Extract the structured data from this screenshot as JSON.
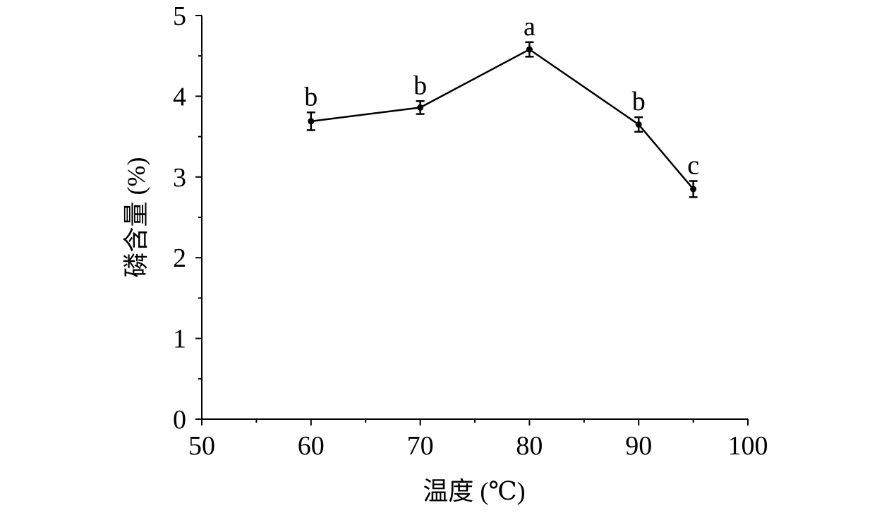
{
  "chart_data": {
    "type": "line",
    "title": "",
    "xlabel": "温度 (℃)",
    "ylabel": "磷含量 (%)",
    "xlim": [
      50,
      100
    ],
    "ylim": [
      0,
      5
    ],
    "x_ticks": [
      "50",
      "60",
      "70",
      "80",
      "90",
      "100"
    ],
    "y_ticks": [
      "0",
      "1",
      "2",
      "3",
      "4",
      "5"
    ],
    "grid": false,
    "series": [
      {
        "x": [
          60,
          70,
          80,
          90,
          95
        ],
        "y": [
          3.69,
          3.86,
          4.58,
          3.65,
          2.85
        ],
        "error": [
          0.11,
          0.08,
          0.09,
          0.09,
          0.1
        ],
        "labels": [
          "b",
          "b",
          "a",
          "b",
          "c"
        ]
      }
    ]
  }
}
